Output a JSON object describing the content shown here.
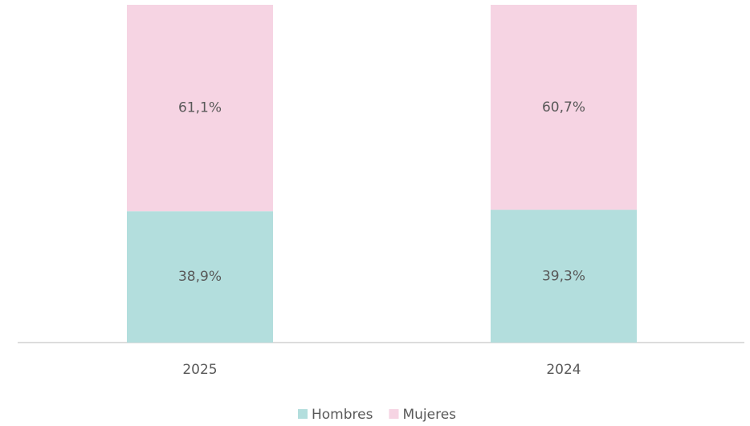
{
  "chart_data": {
    "type": "bar",
    "stacked": true,
    "categories": [
      "2025",
      "2024"
    ],
    "series": [
      {
        "name": "Hombres",
        "color": "#b3dedd",
        "values": [
          38.9,
          39.3
        ],
        "value_labels": [
          "38,9%",
          "39,3%"
        ]
      },
      {
        "name": "Mujeres",
        "color": "#f6d4e3",
        "values": [
          61.1,
          60.7
        ],
        "value_labels": [
          "61,1%",
          "60,7%"
        ]
      }
    ],
    "legend": "bottom"
  }
}
